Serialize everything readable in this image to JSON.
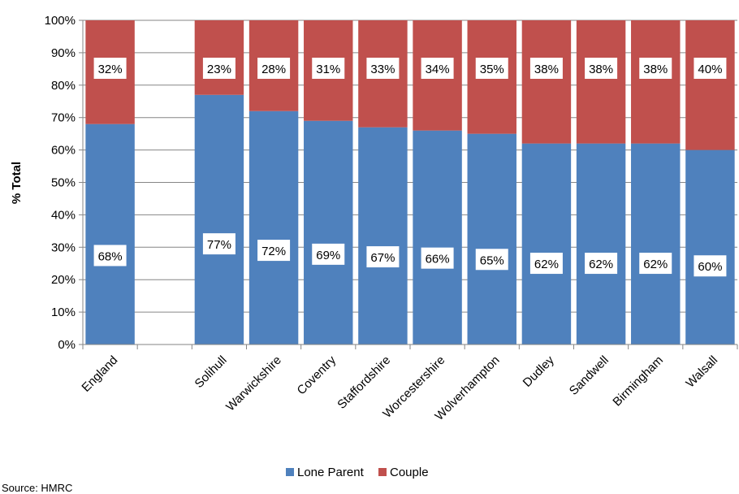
{
  "chart_data": {
    "type": "bar",
    "stacked": true,
    "ylabel": "% Total",
    "ylim": [
      0,
      100
    ],
    "y_ticks": [
      "0%",
      "10%",
      "20%",
      "30%",
      "40%",
      "50%",
      "60%",
      "70%",
      "80%",
      "90%",
      "100%"
    ],
    "categories": [
      "England",
      "",
      "Solihull",
      "Warwickshire",
      "Coventry",
      "Staffordshire",
      "Worcestershire",
      "Wolverhampton",
      "Dudley",
      "Sandwell",
      "Birmingham",
      "Walsall"
    ],
    "series": [
      {
        "name": "Lone Parent",
        "color": "#4f81bd",
        "values": [
          68,
          null,
          77,
          72,
          69,
          67,
          66,
          65,
          62,
          62,
          62,
          60
        ],
        "labels": [
          "68%",
          "",
          "77%",
          "72%",
          "69%",
          "67%",
          "66%",
          "65%",
          "62%",
          "62%",
          "62%",
          "60%"
        ]
      },
      {
        "name": "Couple",
        "color": "#c0504d",
        "values": [
          32,
          null,
          23,
          28,
          31,
          33,
          34,
          35,
          38,
          38,
          38,
          40
        ],
        "labels": [
          "32%",
          "",
          "23%",
          "28%",
          "31%",
          "33%",
          "34%",
          "35%",
          "38%",
          "38%",
          "38%",
          "40%"
        ]
      }
    ],
    "grid": true,
    "legend_position": "bottom"
  },
  "footer": {
    "source_text": "Source: HMRC"
  }
}
